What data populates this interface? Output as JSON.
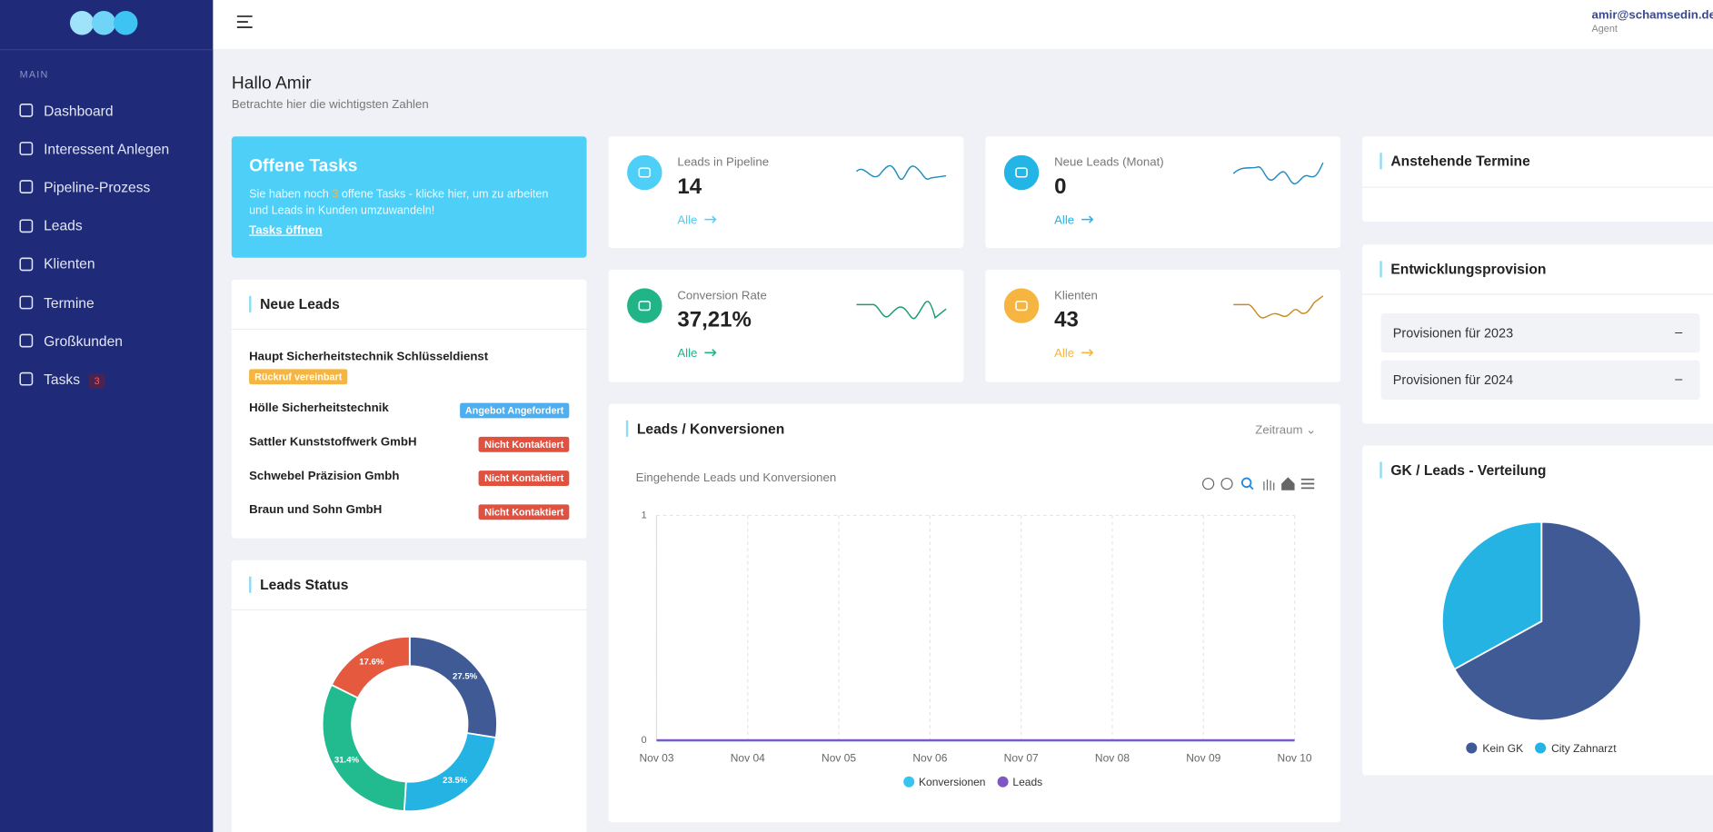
{
  "sidebar": {
    "section": "MAIN",
    "items": [
      {
        "label": "Dashboard"
      },
      {
        "label": "Interessent Anlegen"
      },
      {
        "label": "Pipeline-Prozess"
      },
      {
        "label": "Leads"
      },
      {
        "label": "Klienten"
      },
      {
        "label": "Termine"
      },
      {
        "label": "Großkunden"
      },
      {
        "label": "Tasks",
        "badge": "3"
      }
    ]
  },
  "header": {
    "user": "amir@schamsedin.de",
    "role": "Agent"
  },
  "greeting": {
    "title": "Hallo Amir",
    "subtitle": "Betrachte hier die wichtigsten Zahlen"
  },
  "tasks_card": {
    "title": "Offene Tasks",
    "text_before": "Sie haben noch",
    "count": "3",
    "text_after": "offene Tasks - klicke hier, um zu arbeiten und Leads in Kunden umzuwandeln!",
    "link": "Tasks öffnen"
  },
  "stats": [
    {
      "label": "Leads in Pipeline",
      "value": "14",
      "link": "Alle",
      "color": "#4dcff7"
    },
    {
      "label": "Neue Leads (Monat)",
      "value": "0",
      "link": "Alle",
      "color": "#22b5e6"
    },
    {
      "label": "Conversion Rate",
      "value": "37,21%",
      "link": "Alle",
      "color": "#20b486"
    },
    {
      "label": "Klienten",
      "value": "43",
      "link": "Alle",
      "color": "#f5b540"
    }
  ],
  "neue_leads": {
    "title": "Neue Leads",
    "items": [
      {
        "name": "Haupt Sicherheitstechnik Schlüsseldienst",
        "status": "Rückruf vereinbart",
        "color": "#f5b540"
      },
      {
        "name": "Hölle Sicherheitstechnik",
        "status": "Angebot Angefordert",
        "color": "#4daef0"
      },
      {
        "name": "Sattler Kunststoffwerk GmbH",
        "status": "Nicht Kontaktiert",
        "color": "#e05140"
      },
      {
        "name": "Schwebel Präzision Gmbh",
        "status": "Nicht Kontaktiert",
        "color": "#e05140"
      },
      {
        "name": "Braun und Sohn GmbH",
        "status": "Nicht Kontaktiert",
        "color": "#e05140"
      }
    ]
  },
  "termine": {
    "title": "Anstehende Termine"
  },
  "provision": {
    "title": "Entwicklungsprovision",
    "items": [
      {
        "label": "Provisionen für 2023",
        "toggle": "–"
      },
      {
        "label": "Provisionen für 2024",
        "toggle": "–"
      }
    ]
  },
  "konversionen_card": {
    "title": "Leads / Konversionen",
    "filter": "Zeitraum"
  },
  "chart_data": [
    {
      "type": "donut",
      "title": "Leads Status",
      "values": [
        27.5,
        23.5,
        31.4,
        17.6
      ],
      "value_labels": [
        "27.5%",
        "23.5%",
        "31.4%",
        "17.6%"
      ],
      "colors": [
        "#3f5a95",
        "#24b3e3",
        "#22bb8f",
        "#e55a3f"
      ]
    },
    {
      "type": "line",
      "title": "Eingehende Leads und Konversionen",
      "categories": [
        "Nov 03",
        "Nov 04",
        "Nov 05",
        "Nov 06",
        "Nov 07",
        "Nov 08",
        "Nov 09",
        "Nov 10"
      ],
      "series": [
        {
          "name": "Konversionen",
          "color": "#36c5f0",
          "values": [
            0,
            0,
            0,
            0,
            0,
            0,
            0,
            0
          ]
        },
        {
          "name": "Leads",
          "color": "#7e57c2",
          "values": [
            0,
            0,
            0,
            0,
            0,
            0,
            0,
            0
          ]
        }
      ],
      "ylim": [
        0,
        1
      ],
      "yticks": [
        0,
        1
      ],
      "grid": true
    },
    {
      "type": "pie",
      "title": "GK / Leads - Verteilung",
      "categories": [
        "Kein GK",
        "City Zahnarzt"
      ],
      "values": [
        67,
        33
      ],
      "colors": [
        "#3f5a95",
        "#24b3e3"
      ]
    }
  ]
}
